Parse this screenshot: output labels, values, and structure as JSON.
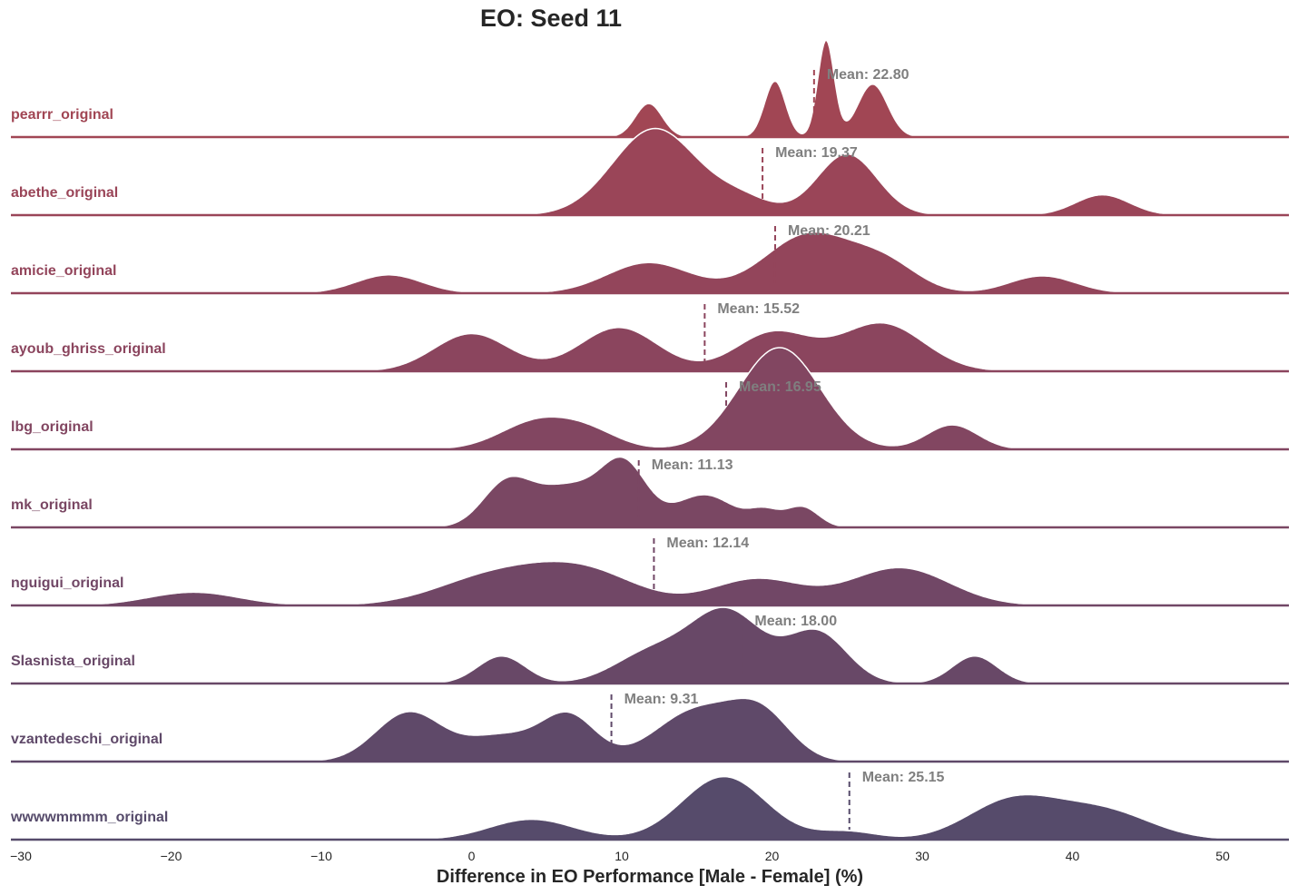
{
  "chart_data": {
    "type": "ridgeline",
    "title": "EO: Seed 11",
    "xlabel": "Difference in EO Performance [Male - Female] (%)",
    "ylabel": "",
    "xlim": [
      -30,
      55
    ],
    "xticks": [
      -30,
      -20,
      -10,
      0,
      10,
      20,
      30,
      40,
      50
    ],
    "xtick_labels": [
      "−30",
      "−20",
      "−10",
      "0",
      "10",
      "20",
      "30",
      "40",
      "50"
    ],
    "mean_prefix": "Mean: ",
    "grid": false,
    "series": [
      {
        "name": "pearrr_original",
        "mean": 22.8,
        "mean_label": "Mean: 22.80",
        "color": "#a14654",
        "peaks": [
          [
            11.8,
            0.9,
            0.33
          ],
          [
            20.2,
            0.7,
            0.55
          ],
          [
            23.6,
            0.55,
            0.95
          ],
          [
            26.7,
            1.0,
            0.52
          ]
        ]
      },
      {
        "name": "abethe_original",
        "mean": 19.37,
        "mean_label": "Mean: 19.37",
        "color": "#9a4558",
        "peaks": [
          [
            12.2,
            2.8,
            0.85
          ],
          [
            18.0,
            2.0,
            0.15
          ],
          [
            25.0,
            2.0,
            0.6
          ],
          [
            42.0,
            1.8,
            0.2
          ]
        ]
      },
      {
        "name": "amicie_original",
        "mean": 20.21,
        "mean_label": "Mean: 20.21",
        "color": "#93455b",
        "peaks": [
          [
            -5.5,
            2.2,
            0.18
          ],
          [
            11.8,
            2.8,
            0.3
          ],
          [
            22.5,
            3.0,
            0.58
          ],
          [
            27.6,
            2.2,
            0.25
          ],
          [
            38.0,
            2.2,
            0.17
          ]
        ]
      },
      {
        "name": "ayoub_ghriss_original",
        "mean": 15.52,
        "mean_label": "Mean: 15.52",
        "color": "#8b455e",
        "peaks": [
          [
            0.0,
            2.5,
            0.37
          ],
          [
            9.8,
            2.6,
            0.43
          ],
          [
            20.1,
            2.5,
            0.38
          ],
          [
            27.3,
            2.8,
            0.47
          ]
        ]
      },
      {
        "name": "lbg_original",
        "mean": 16.95,
        "mean_label": "Mean: 16.95",
        "color": "#824661",
        "peaks": [
          [
            4.5,
            2.5,
            0.28
          ],
          [
            8.0,
            2.0,
            0.13
          ],
          [
            20.5,
            2.7,
            1.0
          ],
          [
            32.0,
            1.7,
            0.24
          ]
        ]
      },
      {
        "name": "mk_original",
        "mean": 11.13,
        "mean_label": "Mean: 11.13",
        "color": "#7a4763",
        "peaks": [
          [
            2.3,
            1.6,
            0.4
          ],
          [
            6.5,
            2.4,
            0.4
          ],
          [
            10.2,
            1.5,
            0.55
          ],
          [
            15.5,
            2.0,
            0.32
          ],
          [
            19.5,
            1.0,
            0.14
          ],
          [
            22.0,
            1.1,
            0.2
          ]
        ]
      },
      {
        "name": "nguigui_original",
        "mean": 12.14,
        "mean_label": "Mean: 12.14",
        "color": "#714766",
        "peaks": [
          [
            -18.5,
            3.0,
            0.13
          ],
          [
            1.5,
            3.8,
            0.28
          ],
          [
            7.5,
            3.5,
            0.32
          ],
          [
            19.0,
            3.0,
            0.26
          ],
          [
            28.5,
            3.3,
            0.37
          ]
        ]
      },
      {
        "name": "Slasnista_original",
        "mean": 18.0,
        "mean_label": "Mean: 18.00",
        "color": "#684867",
        "peaks": [
          [
            2.0,
            1.6,
            0.27
          ],
          [
            12.0,
            2.5,
            0.3
          ],
          [
            17.0,
            2.4,
            0.7
          ],
          [
            23.0,
            2.0,
            0.5
          ],
          [
            33.5,
            1.5,
            0.27
          ]
        ]
      },
      {
        "name": "vzantedeschi_original",
        "mean": 9.31,
        "mean_label": "Mean: 9.31",
        "color": "#5f4969",
        "peaks": [
          [
            -4.2,
            2.2,
            0.48
          ],
          [
            2.0,
            2.5,
            0.25
          ],
          [
            6.5,
            1.8,
            0.43
          ],
          [
            15.0,
            2.8,
            0.5
          ],
          [
            19.3,
            2.0,
            0.42
          ]
        ]
      },
      {
        "name": "wwwwmmmm_original",
        "mean": 25.15,
        "mean_label": "Mean: 25.15",
        "color": "#564b6b",
        "peaks": [
          [
            4.0,
            2.8,
            0.2
          ],
          [
            16.8,
            2.8,
            0.62
          ],
          [
            25.0,
            2.0,
            0.08
          ],
          [
            36.0,
            3.0,
            0.38
          ],
          [
            42.0,
            3.2,
            0.28
          ]
        ]
      }
    ]
  }
}
